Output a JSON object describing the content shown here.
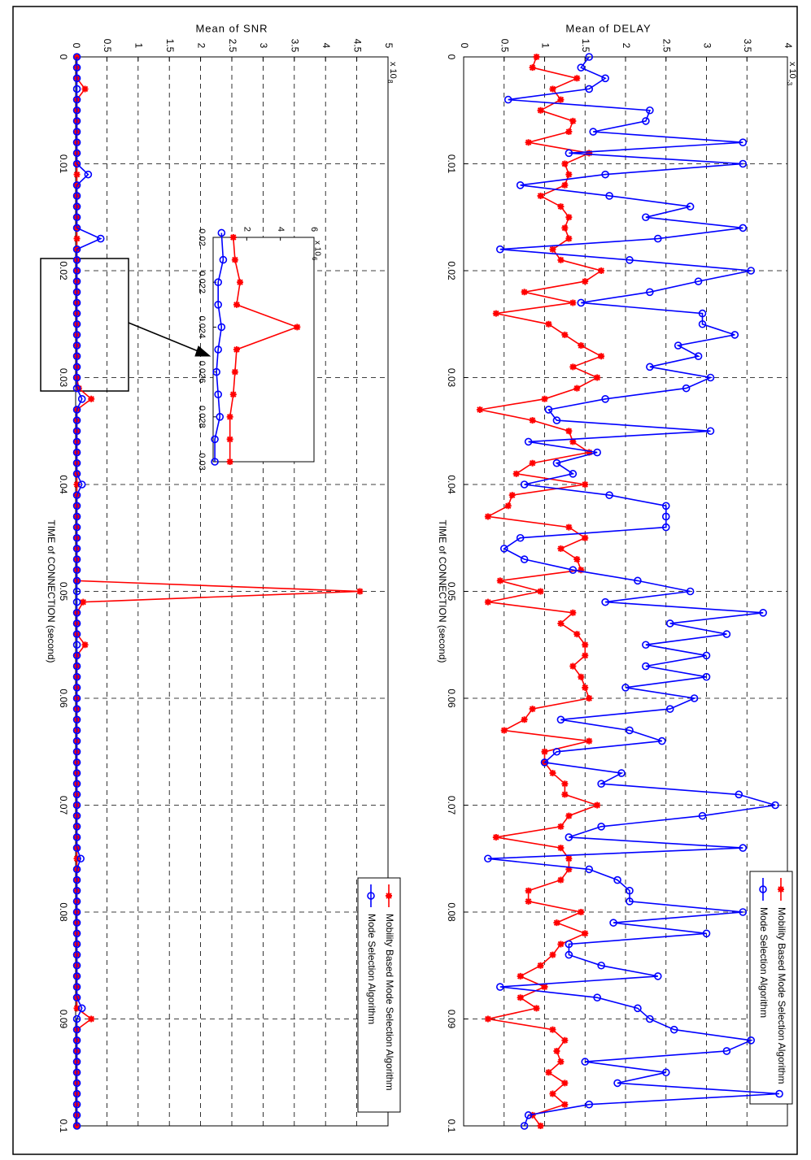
{
  "colors": {
    "red": "#ff0000",
    "blue": "#0000ff",
    "grid": "#000000"
  },
  "chart_data": [
    {
      "type": "line",
      "title": "Mean of DELAY",
      "xlabel": "TIME of CONNECTION (second)",
      "ylabel": "",
      "xlim": [
        0,
        0.1
      ],
      "ylim": [
        0,
        4
      ],
      "y_multiplier_label": "x 10",
      "y_multiplier_exponent": "-3",
      "xticks": [
        "0",
        "0.01",
        "0.02",
        "0.03",
        "0.04",
        "0.05",
        "0.06",
        "0.07",
        "0.08",
        "0.09",
        "0.1"
      ],
      "yticks": [
        "0",
        "0.5",
        "1",
        "1.5",
        "2",
        "2.5",
        "3",
        "3.5",
        "4"
      ],
      "grid": true,
      "legend_position": "bottom-right",
      "series": [
        {
          "name": "Mobility Based Mode Selection Algorithm",
          "color": "red",
          "marker": "star",
          "x": [
            0,
            0.001,
            0.002,
            0.003,
            0.004,
            0.005,
            0.006,
            0.007,
            0.008,
            0.009,
            0.01,
            0.011,
            0.012,
            0.013,
            0.014,
            0.015,
            0.016,
            0.017,
            0.018,
            0.019,
            0.02,
            0.021,
            0.022,
            0.023,
            0.024,
            0.025,
            0.026,
            0.027,
            0.028,
            0.029,
            0.03,
            0.031,
            0.032,
            0.033,
            0.034,
            0.035,
            0.036,
            0.037,
            0.038,
            0.039,
            0.04,
            0.041,
            0.042,
            0.043,
            0.044,
            0.045,
            0.046,
            0.047,
            0.048,
            0.049,
            0.05,
            0.051,
            0.052,
            0.053,
            0.054,
            0.055,
            0.056,
            0.057,
            0.058,
            0.059,
            0.06,
            0.061,
            0.062,
            0.063,
            0.064,
            0.065,
            0.066,
            0.067,
            0.068,
            0.069,
            0.07,
            0.071,
            0.072,
            0.073,
            0.074,
            0.075,
            0.076,
            0.077,
            0.078,
            0.079,
            0.08,
            0.081,
            0.082,
            0.083,
            0.084,
            0.085,
            0.086,
            0.087,
            0.088,
            0.089,
            0.09,
            0.091,
            0.092,
            0.093,
            0.094,
            0.095,
            0.096,
            0.097,
            0.098,
            0.099,
            0.1
          ],
          "values": [
            0.9,
            0.85,
            1.4,
            1.1,
            1.2,
            0.95,
            1.35,
            1.3,
            0.8,
            1.55,
            1.25,
            1.3,
            1.25,
            0.95,
            1.2,
            1.3,
            1.25,
            1.3,
            1.1,
            1.2,
            1.7,
            1.5,
            0.75,
            1.35,
            0.4,
            1.05,
            1.25,
            1.45,
            1.7,
            1.35,
            1.65,
            1.4,
            1.0,
            0.2,
            0.85,
            1.3,
            1.35,
            1.55,
            0.85,
            0.65,
            1.5,
            0.6,
            0.55,
            0.3,
            1.3,
            1.5,
            1.2,
            1.4,
            1.45,
            0.45,
            0.95,
            0.3,
            1.35,
            1.2,
            1.4,
            1.5,
            1.5,
            1.35,
            1.45,
            1.5,
            1.55,
            0.85,
            0.75,
            0.5,
            1.55,
            1.0,
            1.0,
            1.1,
            1.25,
            1.25,
            1.65,
            1.3,
            1.2,
            0.4,
            1.2,
            1.3,
            1.3,
            1.2,
            0.8,
            0.8,
            1.45,
            1.15,
            1.5,
            1.2,
            1.1,
            0.95,
            0.7,
            1.0,
            0.7,
            0.9,
            0.3,
            1.1,
            1.25,
            1.15,
            1.2,
            1.05,
            1.25,
            1.1,
            1.25,
            0.85,
            0.95
          ]
        },
        {
          "name": "Mode Selection Algorithm",
          "color": "blue",
          "marker": "circle",
          "x": [
            0,
            0.001,
            0.002,
            0.003,
            0.004,
            0.005,
            0.006,
            0.007,
            0.008,
            0.009,
            0.01,
            0.011,
            0.012,
            0.013,
            0.014,
            0.015,
            0.016,
            0.017,
            0.018,
            0.019,
            0.02,
            0.021,
            0.022,
            0.023,
            0.024,
            0.025,
            0.026,
            0.027,
            0.028,
            0.029,
            0.03,
            0.031,
            0.032,
            0.033,
            0.034,
            0.035,
            0.036,
            0.037,
            0.038,
            0.039,
            0.04,
            0.041,
            0.042,
            0.043,
            0.044,
            0.045,
            0.046,
            0.047,
            0.048,
            0.049,
            0.05,
            0.051,
            0.052,
            0.053,
            0.054,
            0.055,
            0.056,
            0.057,
            0.058,
            0.059,
            0.06,
            0.061,
            0.062,
            0.063,
            0.064,
            0.065,
            0.066,
            0.067,
            0.068,
            0.069,
            0.07,
            0.071,
            0.072,
            0.073,
            0.074,
            0.075,
            0.076,
            0.077,
            0.078,
            0.079,
            0.08,
            0.081,
            0.082,
            0.083,
            0.084,
            0.085,
            0.086,
            0.087,
            0.088,
            0.089,
            0.09,
            0.091,
            0.092,
            0.093,
            0.094,
            0.095,
            0.096,
            0.097,
            0.098,
            0.099,
            0.1
          ],
          "values": [
            1.55,
            1.45,
            1.75,
            1.55,
            0.55,
            2.3,
            2.25,
            1.6,
            3.45,
            1.3,
            3.45,
            1.75,
            0.7,
            1.8,
            2.8,
            2.25,
            3.45,
            2.4,
            0.45,
            2.05,
            3.55,
            2.9,
            2.3,
            1.45,
            2.95,
            2.95,
            3.35,
            2.65,
            2.9,
            2.3,
            3.05,
            2.75,
            1.75,
            1.05,
            1.15,
            3.05,
            0.8,
            1.65,
            1.15,
            1.35,
            0.75,
            1.8,
            2.5,
            2.5,
            2.5,
            0.7,
            0.5,
            0.75,
            1.35,
            2.15,
            2.8,
            1.75,
            3.7,
            2.55,
            3.25,
            2.25,
            3.0,
            2.25,
            3.0,
            2.0,
            2.85,
            2.55,
            1.2,
            2.05,
            2.45,
            1.15,
            1.0,
            1.95,
            1.7,
            3.4,
            3.85,
            2.95,
            1.7,
            1.3,
            3.45,
            0.3,
            1.55,
            1.9,
            2.05,
            2.05,
            3.45,
            1.85,
            3.0,
            1.3,
            1.3,
            1.7,
            2.4,
            0.45,
            1.65,
            2.15,
            2.3,
            2.6,
            3.55,
            3.25,
            1.5,
            2.5,
            1.9,
            3.9,
            1.55,
            0.8,
            0.75
          ]
        }
      ]
    },
    {
      "type": "line",
      "title": "Mean of SNR",
      "xlabel": "TIME of CONNECTION (second)",
      "ylabel": "",
      "xlim": [
        0,
        0.1
      ],
      "ylim": [
        0,
        5
      ],
      "y_multiplier_label": "x 10",
      "y_multiplier_exponent": "8",
      "xticks": [
        "0",
        "0.01",
        "0.02",
        "0.03",
        "0.04",
        "0.05",
        "0.06",
        "0.07",
        "0.08",
        "0.09",
        "0.1"
      ],
      "yticks": [
        "0",
        "0.5",
        "1",
        "1.5",
        "2",
        "2.5",
        "3",
        "3.5",
        "4",
        "4.5",
        "5"
      ],
      "grid": true,
      "legend_position": "bottom-right",
      "series": [
        {
          "name": "Mobility Based Mode Selection Algorithm",
          "color": "red",
          "marker": "star",
          "x": [
            0,
            0.001,
            0.002,
            0.003,
            0.004,
            0.005,
            0.006,
            0.007,
            0.008,
            0.009,
            0.01,
            0.011,
            0.012,
            0.013,
            0.014,
            0.015,
            0.016,
            0.017,
            0.018,
            0.019,
            0.02,
            0.021,
            0.022,
            0.023,
            0.024,
            0.025,
            0.026,
            0.027,
            0.028,
            0.029,
            0.03,
            0.031,
            0.032,
            0.033,
            0.034,
            0.035,
            0.036,
            0.037,
            0.038,
            0.039,
            0.04,
            0.041,
            0.042,
            0.043,
            0.044,
            0.045,
            0.046,
            0.047,
            0.048,
            0.049,
            0.05,
            0.051,
            0.052,
            0.053,
            0.054,
            0.055,
            0.056,
            0.057,
            0.058,
            0.059,
            0.06,
            0.061,
            0.062,
            0.063,
            0.064,
            0.065,
            0.066,
            0.067,
            0.068,
            0.069,
            0.07,
            0.071,
            0.072,
            0.073,
            0.074,
            0.075,
            0.076,
            0.077,
            0.078,
            0.079,
            0.08,
            0.081,
            0.082,
            0.083,
            0.084,
            0.085,
            0.086,
            0.087,
            0.088,
            0.089,
            0.09,
            0.091,
            0.092,
            0.093,
            0.094,
            0.095,
            0.096,
            0.097,
            0.098,
            0.099,
            0.1
          ],
          "values": [
            0.02,
            0.02,
            0.02,
            0.15,
            0.02,
            0.02,
            0.02,
            0.02,
            0.02,
            0.02,
            0.02,
            0.02,
            0.02,
            0.02,
            0.02,
            0.02,
            0.02,
            0.02,
            0.02,
            0.02,
            0.02,
            0.02,
            0.02,
            0.02,
            0.02,
            0.02,
            0.02,
            0.02,
            0.02,
            0.02,
            0.02,
            0.05,
            0.25,
            0.02,
            0.02,
            0.02,
            0.02,
            0.02,
            0.02,
            0.02,
            0.02,
            0.02,
            0.02,
            0.02,
            0.02,
            0.02,
            0.02,
            0.02,
            0.02,
            0.02,
            4.55,
            0.12,
            0.02,
            0.02,
            0.02,
            0.15,
            0.02,
            0.02,
            0.02,
            0.02,
            0.02,
            0.02,
            0.02,
            0.02,
            0.02,
            0.02,
            0.02,
            0.02,
            0.02,
            0.02,
            0.02,
            0.02,
            0.02,
            0.02,
            0.02,
            0.02,
            0.02,
            0.02,
            0.02,
            0.02,
            0.02,
            0.02,
            0.02,
            0.02,
            0.02,
            0.02,
            0.02,
            0.02,
            0.02,
            0.02,
            0.25,
            0.02,
            0.02,
            0.02,
            0.02,
            0.02,
            0.02,
            0.02,
            0.02,
            0.02,
            0.02
          ]
        },
        {
          "name": "Mode Selection Algorithm",
          "color": "blue",
          "marker": "circle",
          "x": [
            0,
            0.001,
            0.002,
            0.003,
            0.004,
            0.005,
            0.006,
            0.007,
            0.008,
            0.009,
            0.01,
            0.011,
            0.012,
            0.013,
            0.014,
            0.015,
            0.016,
            0.017,
            0.018,
            0.019,
            0.02,
            0.021,
            0.022,
            0.023,
            0.024,
            0.025,
            0.026,
            0.027,
            0.028,
            0.029,
            0.03,
            0.031,
            0.032,
            0.033,
            0.034,
            0.035,
            0.036,
            0.037,
            0.038,
            0.039,
            0.04,
            0.041,
            0.042,
            0.043,
            0.044,
            0.045,
            0.046,
            0.047,
            0.048,
            0.049,
            0.05,
            0.051,
            0.052,
            0.053,
            0.054,
            0.055,
            0.056,
            0.057,
            0.058,
            0.059,
            0.06,
            0.061,
            0.062,
            0.063,
            0.064,
            0.065,
            0.066,
            0.067,
            0.068,
            0.069,
            0.07,
            0.071,
            0.072,
            0.073,
            0.074,
            0.075,
            0.076,
            0.077,
            0.078,
            0.079,
            0.08,
            0.081,
            0.082,
            0.083,
            0.084,
            0.085,
            0.086,
            0.087,
            0.088,
            0.089,
            0.09,
            0.091,
            0.092,
            0.093,
            0.094,
            0.095,
            0.096,
            0.097,
            0.098,
            0.099,
            0.1
          ],
          "values": [
            0.02,
            0.02,
            0.02,
            0.02,
            0.02,
            0.02,
            0.02,
            0.02,
            0.02,
            0.02,
            0.02,
            0.2,
            0.02,
            0.02,
            0.02,
            0.02,
            0.02,
            0.4,
            0.02,
            0.02,
            0.02,
            0.02,
            0.02,
            0.02,
            0.02,
            0.02,
            0.02,
            0.02,
            0.02,
            0.02,
            0.02,
            0.02,
            0.1,
            0.02,
            0.02,
            0.02,
            0.02,
            0.02,
            0.02,
            0.02,
            0.1,
            0.02,
            0.02,
            0.02,
            0.02,
            0.02,
            0.02,
            0.02,
            0.02,
            0.02,
            0.02,
            0.02,
            0.02,
            0.02,
            0.02,
            0.02,
            0.02,
            0.02,
            0.02,
            0.02,
            0.02,
            0.02,
            0.02,
            0.02,
            0.02,
            0.02,
            0.02,
            0.02,
            0.02,
            0.02,
            0.02,
            0.02,
            0.02,
            0.02,
            0.02,
            0.08,
            0.02,
            0.02,
            0.02,
            0.02,
            0.02,
            0.02,
            0.02,
            0.02,
            0.02,
            0.02,
            0.02,
            0.02,
            0.02,
            0.1,
            0.02,
            0.02,
            0.02,
            0.02,
            0.02,
            0.02,
            0.02,
            0.02,
            0.02,
            0.02,
            0.02
          ]
        }
      ],
      "inset": {
        "xlim": [
          0.02,
          0.03
        ],
        "ylim": [
          0,
          6
        ],
        "xticks": [
          "0.02",
          "0.022",
          "0.024",
          "0.026",
          "0.028",
          "0.03"
        ],
        "yticks": [
          "2",
          "4",
          "6"
        ],
        "y_multiplier_label": "x 10",
        "y_multiplier_exponent": "6",
        "series": [
          {
            "name": "Mobility Based Mode Selection Algorithm",
            "color": "red",
            "marker": "star",
            "x": [
              0.02,
              0.021,
              0.022,
              0.023,
              0.024,
              0.025,
              0.026,
              0.027,
              0.028,
              0.029,
              0.03
            ],
            "values": [
              1.2,
              1.3,
              1.6,
              1.4,
              5.0,
              1.4,
              1.3,
              1.2,
              1.0,
              1.0,
              1.0
            ]
          },
          {
            "name": "Mode Selection Algorithm",
            "color": "blue",
            "marker": "circle",
            "x": [
              0.0198,
              0.021,
              0.022,
              0.023,
              0.024,
              0.025,
              0.026,
              0.027,
              0.028,
              0.029,
              0.03
            ],
            "values": [
              0.5,
              0.6,
              0.3,
              0.3,
              0.5,
              0.3,
              0.2,
              0.3,
              0.4,
              0.1,
              0.1
            ]
          }
        ]
      }
    }
  ]
}
